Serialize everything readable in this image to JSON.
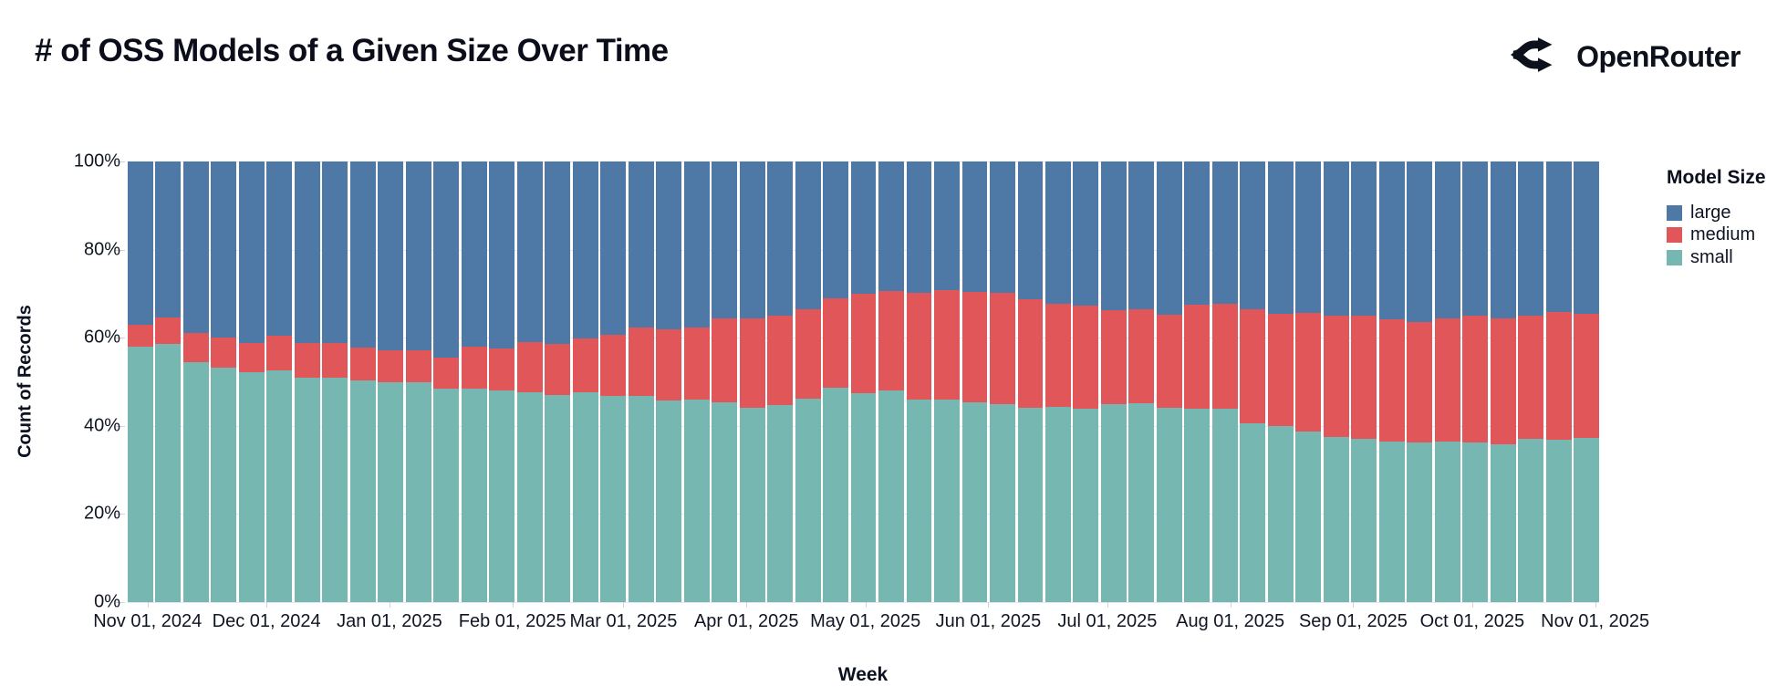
{
  "header": {
    "title": "# of OSS Models of a Given Size Over Time",
    "brand": "OpenRouter"
  },
  "chart_data": {
    "type": "bar",
    "variant": "stacked-normalized-100pct",
    "title": "# of OSS Models of a Given Size Over Time",
    "xlabel": "Week",
    "ylabel": "Count of Records",
    "ylim": [
      0,
      100
    ],
    "grid": true,
    "y_tick_labels": [
      "0%",
      "20%",
      "40%",
      "60%",
      "80%",
      "100%"
    ],
    "x_ticks": [
      {
        "label": "Nov 01, 2024",
        "date": "2024-11-01"
      },
      {
        "label": "Dec 01, 2024",
        "date": "2024-12-01"
      },
      {
        "label": "Jan 01, 2025",
        "date": "2025-01-01"
      },
      {
        "label": "Feb 01, 2025",
        "date": "2025-02-01"
      },
      {
        "label": "Mar 01, 2025",
        "date": "2025-03-01"
      },
      {
        "label": "Apr 01, 2025",
        "date": "2025-04-01"
      },
      {
        "label": "May 01, 2025",
        "date": "2025-05-01"
      },
      {
        "label": "Jun 01, 2025",
        "date": "2025-06-01"
      },
      {
        "label": "Jul 01, 2025",
        "date": "2025-07-01"
      },
      {
        "label": "Aug 01, 2025",
        "date": "2025-08-01"
      },
      {
        "label": "Sep 01, 2025",
        "date": "2025-09-01"
      },
      {
        "label": "Oct 01, 2025",
        "date": "2025-10-01"
      },
      {
        "label": "Nov 01, 2025",
        "date": "2025-11-01"
      }
    ],
    "legend": {
      "title": "Model Size",
      "position": "right",
      "items": [
        {
          "label": "large",
          "key": "large"
        },
        {
          "label": "medium",
          "key": "medium"
        },
        {
          "label": "small",
          "key": "small"
        }
      ]
    },
    "colors": {
      "large": "#4e79a7",
      "medium": "#e15759",
      "small": "#76b7b2"
    },
    "week_start": "2024-10-27",
    "weeks": [
      {
        "week": "2024-10-27",
        "small": 58.0,
        "medium": 5.0,
        "large": 37.0
      },
      {
        "week": "2024-11-03",
        "small": 58.5,
        "medium": 6.0,
        "large": 35.5
      },
      {
        "week": "2024-11-10",
        "small": 54.5,
        "medium": 6.5,
        "large": 39.0
      },
      {
        "week": "2024-11-17",
        "small": 53.3,
        "medium": 6.7,
        "large": 40.0
      },
      {
        "week": "2024-11-24",
        "small": 52.2,
        "medium": 6.6,
        "large": 41.2
      },
      {
        "week": "2024-12-01",
        "small": 52.6,
        "medium": 7.9,
        "large": 39.5
      },
      {
        "week": "2024-12-08",
        "small": 51.0,
        "medium": 7.7,
        "large": 41.3
      },
      {
        "week": "2024-12-15",
        "small": 51.0,
        "medium": 7.8,
        "large": 41.2
      },
      {
        "week": "2024-12-22",
        "small": 50.3,
        "medium": 7.5,
        "large": 42.2
      },
      {
        "week": "2024-12-29",
        "small": 49.8,
        "medium": 7.3,
        "large": 42.9
      },
      {
        "week": "2025-01-05",
        "small": 49.8,
        "medium": 7.3,
        "large": 42.9
      },
      {
        "week": "2025-01-12",
        "small": 48.4,
        "medium": 7.1,
        "large": 44.5
      },
      {
        "week": "2025-01-19",
        "small": 48.4,
        "medium": 9.6,
        "large": 42.0
      },
      {
        "week": "2025-01-26",
        "small": 48.1,
        "medium": 9.4,
        "large": 42.5
      },
      {
        "week": "2025-02-02",
        "small": 47.7,
        "medium": 11.4,
        "large": 40.9
      },
      {
        "week": "2025-02-09",
        "small": 47.0,
        "medium": 11.5,
        "large": 41.5
      },
      {
        "week": "2025-02-16",
        "small": 47.7,
        "medium": 12.2,
        "large": 40.1
      },
      {
        "week": "2025-02-23",
        "small": 46.7,
        "medium": 13.9,
        "large": 39.4
      },
      {
        "week": "2025-03-02",
        "small": 46.7,
        "medium": 15.6,
        "large": 37.7
      },
      {
        "week": "2025-03-09",
        "small": 45.8,
        "medium": 16.2,
        "large": 38.0
      },
      {
        "week": "2025-03-16",
        "small": 46.0,
        "medium": 16.3,
        "large": 37.7
      },
      {
        "week": "2025-03-23",
        "small": 45.4,
        "medium": 18.9,
        "large": 35.7
      },
      {
        "week": "2025-03-30",
        "small": 44.0,
        "medium": 20.3,
        "large": 35.7
      },
      {
        "week": "2025-04-06",
        "small": 44.7,
        "medium": 20.4,
        "large": 34.9
      },
      {
        "week": "2025-04-13",
        "small": 46.1,
        "medium": 20.4,
        "large": 33.5
      },
      {
        "week": "2025-04-20",
        "small": 48.6,
        "medium": 20.4,
        "large": 31.0
      },
      {
        "week": "2025-04-27",
        "small": 47.5,
        "medium": 22.5,
        "large": 30.0
      },
      {
        "week": "2025-05-04",
        "small": 48.1,
        "medium": 22.6,
        "large": 29.3
      },
      {
        "week": "2025-05-11",
        "small": 46.0,
        "medium": 24.2,
        "large": 29.8
      },
      {
        "week": "2025-05-18",
        "small": 46.0,
        "medium": 24.8,
        "large": 29.2
      },
      {
        "week": "2025-05-25",
        "small": 45.3,
        "medium": 25.1,
        "large": 29.6
      },
      {
        "week": "2025-06-01",
        "small": 45.0,
        "medium": 25.2,
        "large": 29.8
      },
      {
        "week": "2025-06-08",
        "small": 44.0,
        "medium": 24.8,
        "large": 31.2
      },
      {
        "week": "2025-06-15",
        "small": 44.3,
        "medium": 23.5,
        "large": 32.2
      },
      {
        "week": "2025-06-22",
        "small": 43.9,
        "medium": 23.4,
        "large": 32.7
      },
      {
        "week": "2025-06-29",
        "small": 45.0,
        "medium": 21.2,
        "large": 33.8
      },
      {
        "week": "2025-07-06",
        "small": 45.1,
        "medium": 21.3,
        "large": 33.6
      },
      {
        "week": "2025-07-13",
        "small": 44.0,
        "medium": 21.3,
        "large": 34.7
      },
      {
        "week": "2025-07-20",
        "small": 43.9,
        "medium": 23.5,
        "large": 32.6
      },
      {
        "week": "2025-07-27",
        "small": 43.9,
        "medium": 23.7,
        "large": 32.4
      },
      {
        "week": "2025-08-03",
        "small": 40.6,
        "medium": 25.9,
        "large": 33.5
      },
      {
        "week": "2025-08-10",
        "small": 39.9,
        "medium": 25.6,
        "large": 34.5
      },
      {
        "week": "2025-08-17",
        "small": 38.8,
        "medium": 26.8,
        "large": 34.4
      },
      {
        "week": "2025-08-24",
        "small": 37.4,
        "medium": 27.7,
        "large": 34.9
      },
      {
        "week": "2025-08-31",
        "small": 37.1,
        "medium": 27.9,
        "large": 35.0
      },
      {
        "week": "2025-09-07",
        "small": 36.4,
        "medium": 27.7,
        "large": 35.9
      },
      {
        "week": "2025-09-14",
        "small": 36.2,
        "medium": 27.3,
        "large": 36.5
      },
      {
        "week": "2025-09-21",
        "small": 36.4,
        "medium": 27.9,
        "large": 35.7
      },
      {
        "week": "2025-09-28",
        "small": 36.2,
        "medium": 28.8,
        "large": 35.0
      },
      {
        "week": "2025-10-05",
        "small": 35.9,
        "medium": 28.4,
        "large": 35.7
      },
      {
        "week": "2025-10-12",
        "small": 37.0,
        "medium": 28.1,
        "large": 34.9
      },
      {
        "week": "2025-10-19",
        "small": 36.9,
        "medium": 28.9,
        "large": 34.2
      },
      {
        "week": "2025-10-26",
        "small": 37.3,
        "medium": 28.2,
        "large": 34.5
      }
    ]
  }
}
